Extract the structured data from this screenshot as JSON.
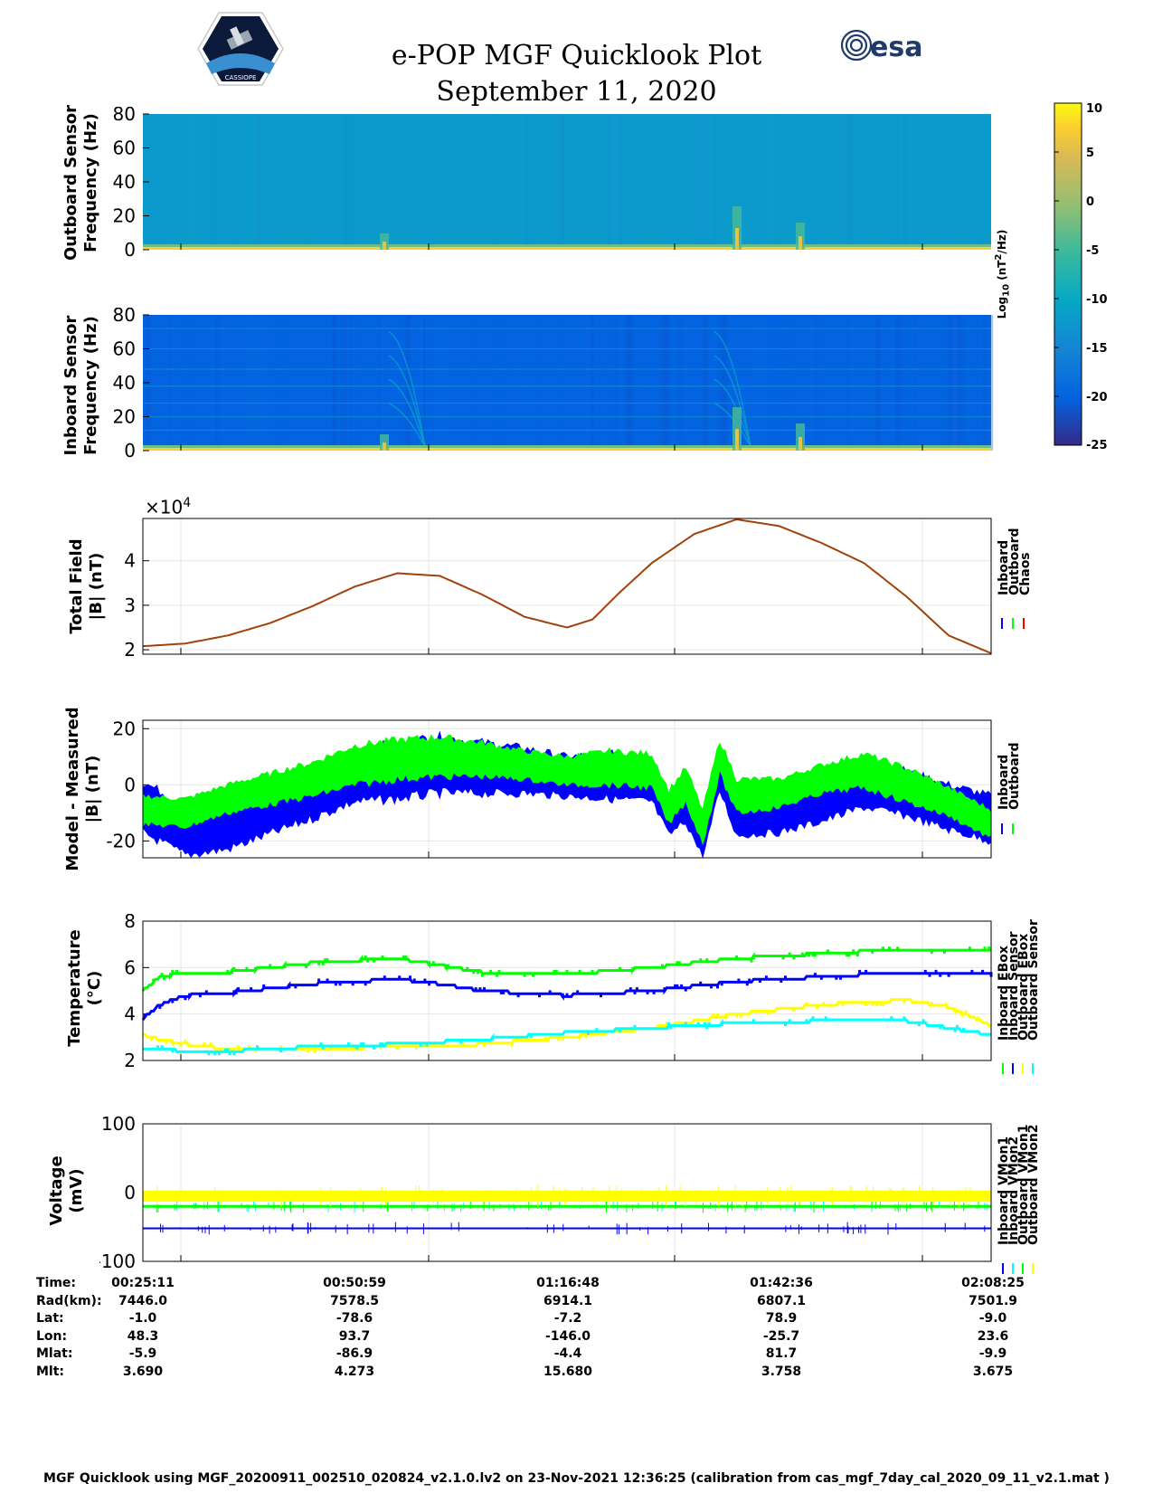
{
  "header": {
    "title_line1": "e-POP MGF Quicklook Plot",
    "title_line2": "September 11, 2020",
    "mission_logo_text": "CASSIOPE",
    "esa_logo_text": "esa"
  },
  "colors": {
    "inboard": "#0000ff",
    "outboard": "#00ff00",
    "chaos": "#ff0000",
    "yellow": "#ffff00",
    "cyan": "#00ffff",
    "total_field_line": "#a0430b"
  },
  "colorbar": {
    "label": "Log10 (nT2/Hz)",
    "label_base": "Log",
    "label_sub": "10",
    "label_unit_open": "(nT",
    "label_sup": "2",
    "label_unit_close": "/Hz)",
    "ticks": [
      "10",
      "5",
      "0",
      "-5",
      "-10",
      "-15",
      "-20",
      "-25"
    ]
  },
  "chart_data": [
    {
      "type": "heatmap",
      "name": "outboard-spectrogram",
      "ylabel_line1": "Outboard Sensor",
      "ylabel_line2": "Frequency (Hz)",
      "yticks": [
        "80",
        "60",
        "40",
        "20",
        "0"
      ],
      "ylim": [
        0,
        80
      ],
      "clim": [
        -25,
        10
      ],
      "background_level": -12
    },
    {
      "type": "heatmap",
      "name": "inboard-spectrogram",
      "ylabel_line1": "Inboard Sensor",
      "ylabel_line2": "Frequency (Hz)",
      "yticks": [
        "80",
        "60",
        "40",
        "20",
        "0"
      ],
      "ylim": [
        0,
        80
      ],
      "clim": [
        -25,
        10
      ],
      "background_level": -20
    },
    {
      "type": "line",
      "name": "total-field",
      "ylabel_line1": "Total Field",
      "ylabel_line2": "|B| (nT)",
      "exponent_label": "×10",
      "exponent": "4",
      "yticks": [
        "4",
        "3",
        "2"
      ],
      "ylim": [
        1.9,
        4.95
      ],
      "legend": [
        "Inboard",
        "Outboard",
        "Chaos"
      ],
      "x": [
        0,
        0.05,
        0.1,
        0.15,
        0.2,
        0.25,
        0.3,
        0.35,
        0.4,
        0.45,
        0.5,
        0.53,
        0.56,
        0.6,
        0.65,
        0.7,
        0.75,
        0.8,
        0.85,
        0.9,
        0.95,
        1.0
      ],
      "values": [
        2.08,
        2.14,
        2.32,
        2.6,
        2.98,
        3.42,
        3.72,
        3.66,
        3.24,
        2.74,
        2.5,
        2.68,
        3.25,
        3.95,
        4.6,
        4.93,
        4.78,
        4.4,
        3.95,
        3.2,
        2.32,
        1.92
      ]
    },
    {
      "type": "line",
      "name": "model-minus-measured",
      "ylabel_line1": "Model - Measured",
      "ylabel_line2": "|B| (nT)",
      "yticks": [
        "20",
        "0",
        "-20"
      ],
      "ylim": [
        -26,
        23
      ],
      "legend": [
        "Inboard",
        "Outboard"
      ],
      "x": [
        0,
        0.05,
        0.1,
        0.2,
        0.25,
        0.3,
        0.35,
        0.4,
        0.45,
        0.5,
        0.55,
        0.6,
        0.62,
        0.64,
        0.66,
        0.68,
        0.7,
        0.75,
        0.8,
        0.85,
        0.9,
        0.95,
        1.0
      ],
      "series": [
        {
          "name": "Inboard",
          "center": [
            -8,
            -16,
            -14,
            -3,
            3,
            5,
            7,
            6,
            5,
            3,
            3,
            2,
            -10,
            -5,
            -18,
            6,
            -10,
            -10,
            -5,
            0,
            -3,
            -8,
            -12
          ],
          "amplitude": [
            9,
            9,
            9,
            9,
            9,
            10,
            10,
            9,
            8,
            7,
            8,
            8,
            8,
            8,
            8,
            8,
            8,
            7,
            8,
            8,
            8,
            8,
            8
          ]
        },
        {
          "name": "Outboard",
          "center": [
            -9,
            -10,
            -5,
            2,
            7,
            9,
            10,
            9,
            7,
            5,
            6,
            5,
            -8,
            0,
            -15,
            10,
            -4,
            -3,
            2,
            5,
            0,
            -6,
            -14
          ],
          "amplitude": [
            5,
            5,
            5,
            6,
            7,
            7,
            7,
            6,
            5,
            5,
            6,
            6,
            6,
            6,
            6,
            6,
            6,
            5,
            5,
            6,
            6,
            5,
            5
          ]
        }
      ]
    },
    {
      "type": "line",
      "name": "temperature",
      "ylabel_line1": "Temperature",
      "ylabel_line2": "(°C)",
      "yticks": [
        "8",
        "6",
        "4",
        "2"
      ],
      "ylim": [
        2,
        8
      ],
      "legend": [
        "Inboard EBox",
        "Inboard Sensor",
        "Outboard EBox",
        "Outboard Sensor"
      ],
      "x": [
        0,
        0.02,
        0.05,
        0.1,
        0.2,
        0.3,
        0.35,
        0.4,
        0.5,
        0.6,
        0.7,
        0.8,
        0.9,
        0.95,
        1.0
      ],
      "series": [
        {
          "name": "Inboard EBox",
          "color": "#00ff00",
          "values": [
            5.0,
            5.6,
            5.8,
            5.8,
            6.2,
            6.4,
            6.1,
            5.8,
            5.7,
            6.0,
            6.4,
            6.6,
            6.8,
            6.8,
            6.8
          ]
        },
        {
          "name": "Inboard Sensor",
          "color": "#0000ff",
          "values": [
            3.8,
            4.4,
            4.8,
            4.9,
            5.3,
            5.5,
            5.3,
            5.0,
            4.8,
            5.0,
            5.4,
            5.6,
            5.8,
            5.8,
            5.8
          ]
        },
        {
          "name": "Outboard EBox",
          "color": "#ffff00",
          "values": [
            3.1,
            2.9,
            2.7,
            2.5,
            2.5,
            2.6,
            2.6,
            2.7,
            3.0,
            3.4,
            4.0,
            4.4,
            4.6,
            4.3,
            3.5
          ]
        },
        {
          "name": "Outboard Sensor",
          "color": "#00ffff",
          "values": [
            2.5,
            2.5,
            2.4,
            2.4,
            2.6,
            2.7,
            2.8,
            2.9,
            3.2,
            3.4,
            3.6,
            3.7,
            3.7,
            3.4,
            3.1
          ]
        }
      ]
    },
    {
      "type": "line",
      "name": "voltage",
      "ylabel_line1": "Voltage",
      "ylabel_line2": "(mV)",
      "yticks": [
        "100",
        "0",
        "-100"
      ],
      "ylim": [
        -100,
        100
      ],
      "legend": [
        "Inboard VMon1",
        "Inboard VMon2",
        "Outboard VMon1",
        "Outboard VMon2"
      ],
      "series": [
        {
          "name": "Inboard VMon1",
          "color": "#0000ff",
          "level": -52,
          "spread": 1
        },
        {
          "name": "Inboard VMon2",
          "color": "#00ffff",
          "level": -20,
          "spread": 1
        },
        {
          "name": "Outboard VMon1",
          "color": "#00ff00",
          "level": -20,
          "spread": 2
        },
        {
          "name": "Outboard VMon2",
          "color": "#ffff00",
          "level": -5,
          "spread": 8
        }
      ]
    }
  ],
  "ephemeris": {
    "rows": [
      {
        "label": "Time:",
        "values": [
          "00:25:11",
          "00:50:59",
          "01:16:48",
          "01:42:36",
          "02:08:25"
        ]
      },
      {
        "label": "Rad(km):",
        "values": [
          "7446.0",
          "7578.5",
          "6914.1",
          "6807.1",
          "7501.9"
        ]
      },
      {
        "label": "Lat:",
        "values": [
          "-1.0",
          "-78.6",
          "-7.2",
          "78.9",
          "-9.0"
        ]
      },
      {
        "label": "Lon:",
        "values": [
          "48.3",
          "93.7",
          "-146.0",
          "-25.7",
          "23.6"
        ]
      },
      {
        "label": "Mlat:",
        "values": [
          "-5.9",
          "-86.9",
          "-4.4",
          "81.7",
          "-9.9"
        ]
      },
      {
        "label": "Mlt:",
        "values": [
          "3.690",
          "4.273",
          "15.680",
          "3.758",
          "3.675"
        ]
      }
    ]
  },
  "footer": {
    "text": "MGF Quicklook using MGF_20200911_002510_020824_v2.1.0.lv2 on 23-Nov-2021 12:36:25 (calibration from cas_mgf_7day_cal_2020_09_11_v2.1.mat )"
  }
}
